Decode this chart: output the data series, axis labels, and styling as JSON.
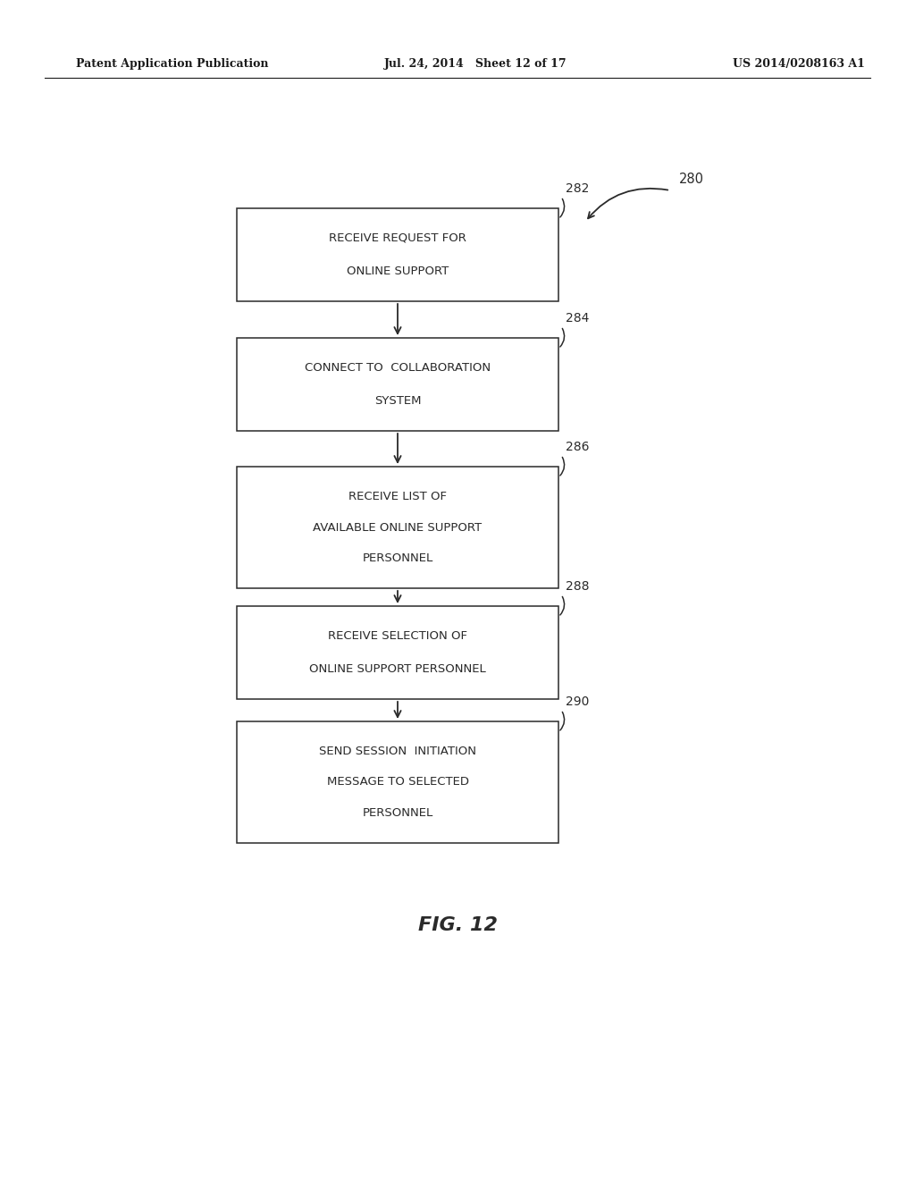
{
  "background_color": "#ffffff",
  "header_left": "Patent Application Publication",
  "header_mid": "Jul. 24, 2014   Sheet 12 of 17",
  "header_right": "US 2014/0208163 A1",
  "fig_label": "FIG. 12",
  "diagram_ref": "280",
  "boxes": [
    {
      "id": "282",
      "lines": [
        "RECEIVE REQUEST FOR",
        "ONLINE SUPPORT"
      ],
      "ref_label": "282"
    },
    {
      "id": "284",
      "lines": [
        "CONNECT TO  COLLABORATION",
        "SYSTEM"
      ],
      "ref_label": "284"
    },
    {
      "id": "286",
      "lines": [
        "RECEIVE LIST OF",
        "AVAILABLE ONLINE SUPPORT",
        "PERSONNEL"
      ],
      "ref_label": "286"
    },
    {
      "id": "288",
      "lines": [
        "RECEIVE SELECTION OF",
        "ONLINE SUPPORT PERSONNEL"
      ],
      "ref_label": "288"
    },
    {
      "id": "290",
      "lines": [
        "SEND SESSION  INITIATION",
        "MESSAGE TO SELECTED",
        "PERSONNEL"
      ],
      "ref_label": "290"
    }
  ],
  "arrow_color": "#2a2a2a",
  "box_edge_color": "#2a2a2a",
  "box_face_color": "#ffffff",
  "text_color": "#2a2a2a",
  "header_color": "#1a1a1a"
}
